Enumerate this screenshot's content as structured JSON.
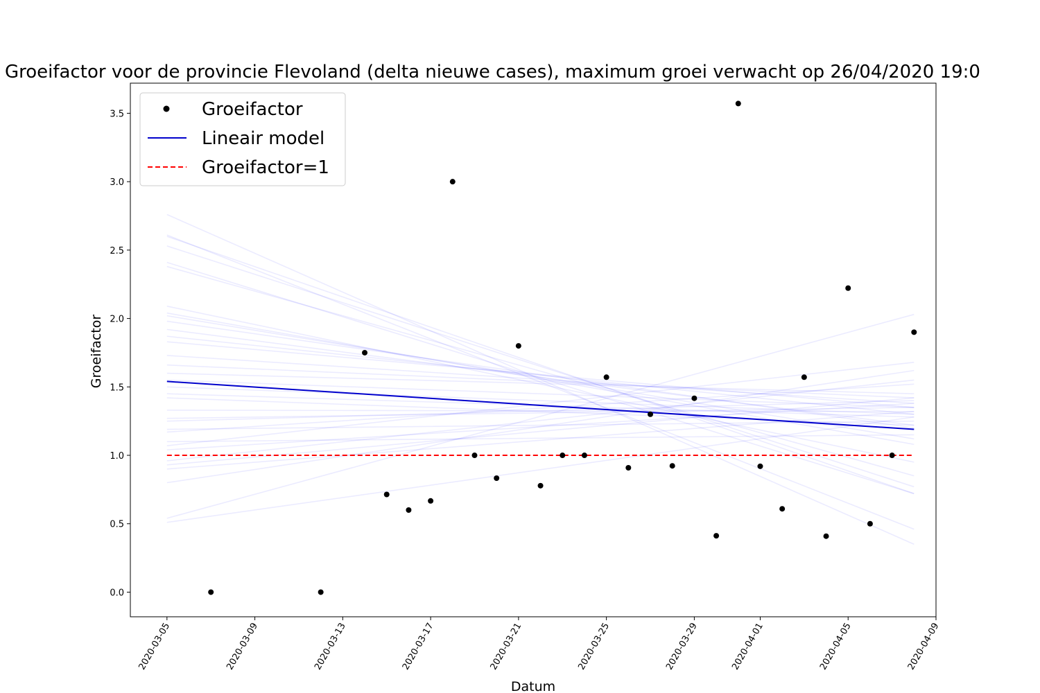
{
  "chart_data": {
    "type": "scatter",
    "title": "Groeifactor voor de provincie Flevoland (delta nieuwe cases), maximum groei verwacht op 26/04/2020 19:0",
    "xlabel": "Datum",
    "ylabel": "Groeifactor",
    "xlim": [
      "2020-03-03T08:00",
      "2020-04-09T00:00"
    ],
    "ylim": [
      -0.18,
      3.72
    ],
    "x_ticks": [
      "2020-03-05",
      "2020-03-09",
      "2020-03-13",
      "2020-03-17",
      "2020-03-21",
      "2020-03-25",
      "2020-03-29",
      "2020-04-01",
      "2020-04-05",
      "2020-04-09"
    ],
    "y_ticks": [
      0.0,
      0.5,
      1.0,
      1.5,
      2.0,
      2.5,
      3.0,
      3.5
    ],
    "y_tick_labels": [
      "0.0",
      "0.5",
      "1.0",
      "1.5",
      "2.0",
      "2.5",
      "3.0",
      "3.5"
    ],
    "legend_position": "top-left",
    "grid": false,
    "series": [
      {
        "name": "Groeifactor",
        "style": "points",
        "color": "#000000",
        "points": [
          {
            "x": "2020-03-07",
            "y": 0.0
          },
          {
            "x": "2020-03-12",
            "y": 0.0
          },
          {
            "x": "2020-03-14",
            "y": 1.75
          },
          {
            "x": "2020-03-15",
            "y": 0.714
          },
          {
            "x": "2020-03-16",
            "y": 0.6
          },
          {
            "x": "2020-03-17",
            "y": 0.667
          },
          {
            "x": "2020-03-18",
            "y": 3.0
          },
          {
            "x": "2020-03-19",
            "y": 1.0
          },
          {
            "x": "2020-03-20",
            "y": 0.833
          },
          {
            "x": "2020-03-21",
            "y": 1.8
          },
          {
            "x": "2020-03-22",
            "y": 0.778
          },
          {
            "x": "2020-03-23",
            "y": 1.0
          },
          {
            "x": "2020-03-24",
            "y": 1.0
          },
          {
            "x": "2020-03-25",
            "y": 1.571
          },
          {
            "x": "2020-03-26",
            "y": 0.909
          },
          {
            "x": "2020-03-27",
            "y": 1.3
          },
          {
            "x": "2020-03-28",
            "y": 0.923
          },
          {
            "x": "2020-03-29",
            "y": 1.417
          },
          {
            "x": "2020-03-30",
            "y": 0.412
          },
          {
            "x": "2020-03-31",
            "y": 3.571
          },
          {
            "x": "2020-04-01",
            "y": 0.92
          },
          {
            "x": "2020-04-02",
            "y": 0.609
          },
          {
            "x": "2020-04-03",
            "y": 1.571
          },
          {
            "x": "2020-04-04",
            "y": 0.409
          },
          {
            "x": "2020-04-05",
            "y": 2.222
          },
          {
            "x": "2020-04-06",
            "y": 0.5
          },
          {
            "x": "2020-04-07",
            "y": 1.0
          },
          {
            "x": "2020-04-08",
            "y": 1.9
          }
        ]
      },
      {
        "name": "Lineair model",
        "style": "line",
        "color": "#0000cc",
        "points": [
          {
            "x": "2020-03-05",
            "y": 1.54
          },
          {
            "x": "2020-04-08",
            "y": 1.19
          }
        ]
      },
      {
        "name": "Groeifactor=1",
        "style": "dashed",
        "color": "#ff0000",
        "points": [
          {
            "x": "2020-03-05",
            "y": 1.0
          },
          {
            "x": "2020-04-08",
            "y": 1.0
          }
        ]
      }
    ],
    "uncertainty_lines": {
      "color": "#0000ff",
      "opacity": 0.08,
      "x_start": "2020-03-05",
      "x_end": "2020-04-08",
      "lines": [
        [
          2.76,
          0.35
        ],
        [
          2.61,
          0.46
        ],
        [
          2.6,
          0.72
        ],
        [
          2.53,
          0.77
        ],
        [
          2.41,
          0.72
        ],
        [
          2.38,
          0.85
        ],
        [
          2.09,
          0.95
        ],
        [
          2.04,
          1.08
        ],
        [
          2.02,
          1.12
        ],
        [
          1.98,
          1.2
        ],
        [
          1.92,
          1.22
        ],
        [
          1.87,
          1.3
        ],
        [
          1.83,
          1.35
        ],
        [
          1.73,
          1.38
        ],
        [
          1.66,
          1.42
        ],
        [
          1.6,
          1.45
        ],
        [
          1.55,
          1.35
        ],
        [
          1.5,
          1.3
        ],
        [
          1.45,
          1.28
        ],
        [
          1.42,
          1.22
        ],
        [
          1.33,
          1.32
        ],
        [
          1.27,
          1.35
        ],
        [
          1.25,
          1.4
        ],
        [
          1.19,
          1.25
        ],
        [
          1.17,
          1.52
        ],
        [
          1.1,
          1.15
        ],
        [
          1.07,
          1.68
        ],
        [
          1.04,
          1.38
        ],
        [
          0.96,
          1.55
        ],
        [
          0.93,
          1.42
        ],
        [
          0.9,
          1.32
        ],
        [
          0.8,
          1.62
        ],
        [
          0.54,
          2.03
        ],
        [
          0.51,
          1.28
        ]
      ]
    }
  }
}
